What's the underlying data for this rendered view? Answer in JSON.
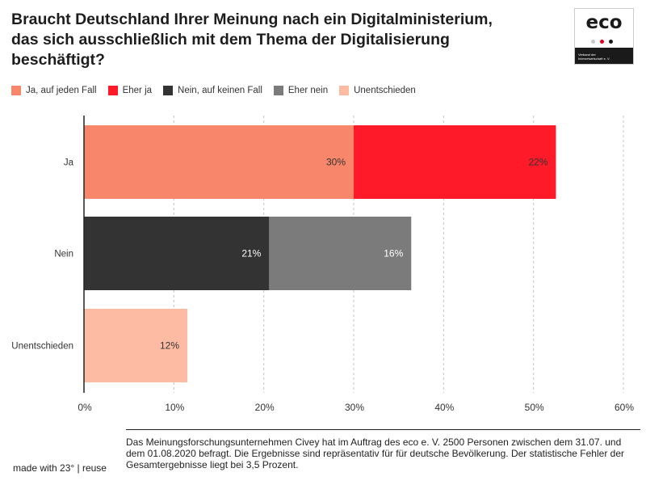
{
  "title_lines": [
    "Braucht Deutschland Ihrer Meinung nach ein Digitalministerium,",
    "das sich ausschließlich mit dem Thema der Digitalisierung",
    "beschäftigt?"
  ],
  "logo": {
    "word": "eco",
    "subtitle_lines": [
      "Verband der",
      "Internetwirtschaft e. V."
    ],
    "dot_colors": [
      "#c8c8c8",
      "#e3001b",
      "#1a1a1a"
    ]
  },
  "legend": [
    {
      "label": "Ja, auf jeden Fall",
      "color": "#f8866a"
    },
    {
      "label": "Eher ja",
      "color": "#ff1a2a"
    },
    {
      "label": "Nein, auf keinen Fall",
      "color": "#333333"
    },
    {
      "label": "Eher nein",
      "color": "#7b7b7b"
    },
    {
      "label": "Unentschieden",
      "color": "#fcbba2"
    }
  ],
  "chart_data": {
    "type": "bar",
    "orientation": "horizontal",
    "stacked": true,
    "title": "Braucht Deutschland Ihrer Meinung nach ein Digitalministerium, das sich ausschließlich mit dem Thema der Digitalisierung beschäftigt?",
    "categories": [
      "Ja",
      "Nein",
      "Unentschieden"
    ],
    "series": [
      {
        "name": "Ja, auf jeden Fall",
        "color": "#f8866a",
        "values": [
          30,
          null,
          null
        ],
        "labels": [
          "30%",
          null,
          null
        ],
        "label_color": "#333333"
      },
      {
        "name": "Eher ja",
        "color": "#ff1a2a",
        "values": [
          22.5,
          null,
          null
        ],
        "labels": [
          "22%",
          null,
          null
        ],
        "label_color": "#333333"
      },
      {
        "name": "Nein, auf keinen Fall",
        "color": "#333333",
        "values": [
          null,
          20.6,
          null
        ],
        "labels": [
          null,
          "21%",
          null
        ],
        "label_color": "#ffffff"
      },
      {
        "name": "Eher nein",
        "color": "#7b7b7b",
        "values": [
          null,
          15.8,
          null
        ],
        "labels": [
          null,
          "16%",
          null
        ],
        "label_color": "#ffffff"
      },
      {
        "name": "Unentschieden",
        "color": "#fcbba2",
        "values": [
          null,
          null,
          11.5
        ],
        "labels": [
          null,
          null,
          "12%"
        ],
        "label_color": "#333333"
      }
    ],
    "xlim": [
      0,
      60
    ],
    "xticks": [
      0,
      10,
      20,
      30,
      40,
      50,
      60
    ],
    "xtick_labels": [
      "0%",
      "10%",
      "20%",
      "30%",
      "40%",
      "50%",
      "60%"
    ],
    "grid": "vertical dashed",
    "legend_position": "top-left"
  },
  "footnote": "Das Meinungsforschungsunternehmen Civey hat im Auftrag des eco e. V. 2500 Personen zwischen dem 31.07. und dem 01.08.2020 befragt. Die Ergebnisse sind repräsentativ für für deutsche Bevölkerung. Der statistische Fehler der Gesamtergebnisse liegt bei 3,5 Prozent.",
  "credit": "made with 23° | reuse"
}
